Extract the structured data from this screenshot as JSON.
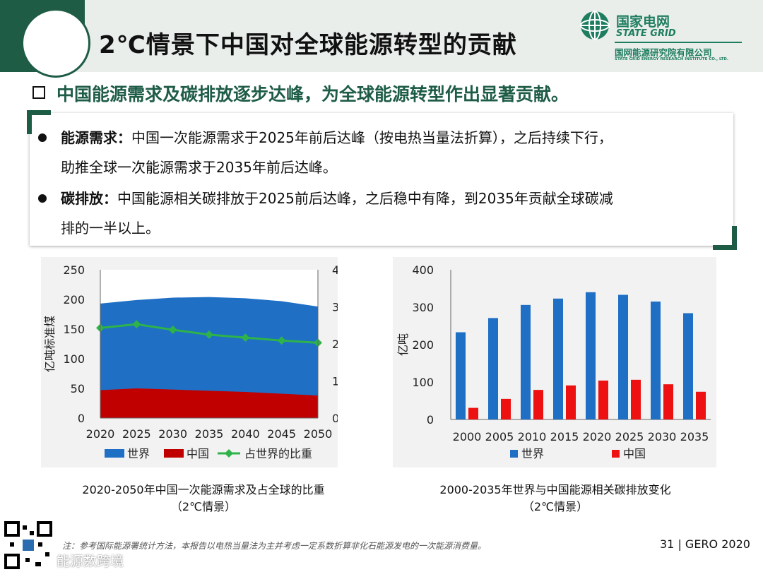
{
  "header": {
    "title": "2℃情景下中国对全球能源转型的贡献",
    "logo_cn": "国家电网",
    "logo_en": "STATE GRID",
    "logo_sub": "国网能源研究院有限公司",
    "logo_sub_en": "STATE GRID ENERGY RESEARCH INSTITUTE CO., LTD."
  },
  "headline": "中国能源需求及碳排放逐步达峰，为全球能源转型作出显著贡献。",
  "bullets": [
    {
      "label": "能源需求：",
      "text": "中国一次能源需求于2025年前后达峰（按电热当量法折算），之后持续下行，",
      "text2": "助推全球一次能源需求于2035年前后达峰。"
    },
    {
      "label": "碳排放：",
      "text": "中国能源相关碳排放于2025前后达峰，之后稳中有降，到2035年贡献全球碳减",
      "text2": "排的一半以上。"
    }
  ],
  "chart_data": [
    {
      "type": "area",
      "x": [
        "2020",
        "2025",
        "2030",
        "2035",
        "2040",
        "2045",
        "2050"
      ],
      "series": [
        {
          "name": "世界",
          "values": [
            193,
            199,
            203,
            204,
            202,
            197,
            188
          ],
          "color": "#1f6fc5",
          "axis": "left"
        },
        {
          "name": "中国",
          "values": [
            47,
            50,
            48,
            46,
            44,
            41,
            38
          ],
          "color": "#c00000",
          "axis": "left"
        },
        {
          "name": "占世界的比重",
          "values": [
            24.3,
            25.3,
            23.8,
            22.5,
            21.7,
            20.9,
            20.3
          ],
          "color": "#2eb34a",
          "axis": "right"
        }
      ],
      "ylabel": "亿吨标准煤",
      "ylim": [
        0,
        250
      ],
      "yticks": [
        "250",
        "200",
        "150",
        "100",
        "50",
        "0"
      ],
      "y2lim": [
        0,
        40
      ],
      "y2ticks": [
        "40%",
        "30%",
        "20%",
        "10%",
        "0%"
      ],
      "legend": [
        "世界",
        "中国",
        "占世界的比重"
      ],
      "caption": "2020-2050年中国一次能源需求及占全球的比重",
      "caption2": "（2℃情景）"
    },
    {
      "type": "bar",
      "categories": [
        "2000",
        "2005",
        "2010",
        "2015",
        "2020",
        "2025",
        "2030",
        "2035"
      ],
      "series": [
        {
          "name": "世界",
          "values": [
            233,
            271,
            306,
            323,
            340,
            333,
            315,
            284
          ],
          "color": "#1f6fc5"
        },
        {
          "name": "中国",
          "values": [
            31,
            55,
            79,
            91,
            104,
            106,
            94,
            74
          ],
          "color": "#ee1111"
        }
      ],
      "ylabel": "亿吨",
      "ylim": [
        0,
        400
      ],
      "yticks": [
        "400",
        "300",
        "200",
        "100",
        "0"
      ],
      "legend": [
        "世界",
        "中国"
      ],
      "caption": "2000-2035年世界与中国能源相关碳排放变化",
      "caption2": "（2℃情景）"
    }
  ],
  "footer": {
    "note": "注：参考国际能源署统计方法，本报告以电热当量法为主并考虑一定系数折算非化石能源发电的一次能源消费量。",
    "page": "31 | GERO 2020",
    "watermark": "能源数跨境"
  }
}
